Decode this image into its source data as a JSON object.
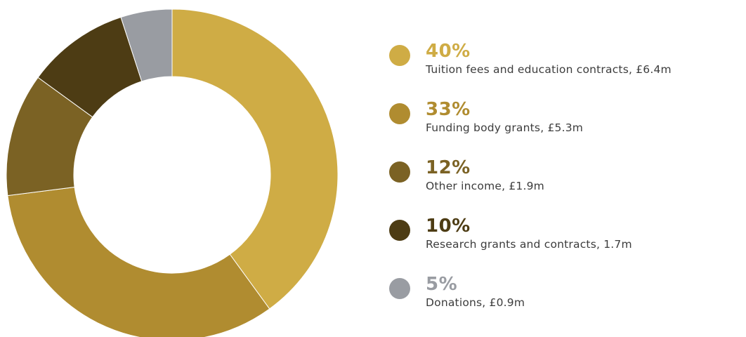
{
  "chart_data": {
    "type": "pie",
    "categories": [
      "Tuition fees and education contracts, £6.4m",
      "Funding body grants, £5.3m",
      "Other income, £1.9m",
      "Research grants and contracts, 1.7m",
      "Donations, £0.9m"
    ],
    "values": [
      40,
      33,
      12,
      10,
      5
    ],
    "percent_labels": [
      "40%",
      "33%",
      "12%",
      "10%",
      "5%"
    ],
    "colors": [
      "#cfac45",
      "#b08c30",
      "#7b6224",
      "#4d3c14",
      "#999ca2"
    ],
    "title": "",
    "legend_position": "right",
    "style": "donut"
  },
  "legend": [
    {
      "percent": "40%",
      "label": "Tuition fees and education contracts, £6.4m",
      "color": "#cfac45"
    },
    {
      "percent": "33%",
      "label": "Funding body grants, £5.3m",
      "color": "#b08c30"
    },
    {
      "percent": "12%",
      "label": "Other income, £1.9m",
      "color": "#7b6224"
    },
    {
      "percent": "10%",
      "label": "Research grants and contracts, 1.7m",
      "color": "#4d3c14"
    },
    {
      "percent": "5%",
      "label": "Donations, £0.9m",
      "color": "#999ca2"
    }
  ]
}
